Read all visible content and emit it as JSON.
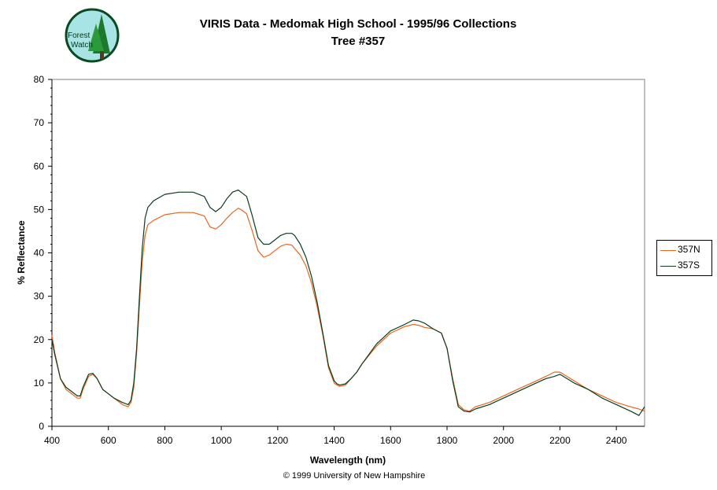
{
  "title_line1": "VIRIS Data - Medomak High School - 1995/96 Collections",
  "title_line2": "Tree #357",
  "logo_text_1": "Forest",
  "logo_text_2": "Watch",
  "copyright": "© 1999 University of New Hampshire",
  "chart_data": {
    "type": "line",
    "xlabel": "Wavelength (nm)",
    "ylabel": "% Reflectance",
    "xlim": [
      400,
      2500
    ],
    "ylim": [
      0,
      80
    ],
    "xticks": [
      400,
      600,
      800,
      1000,
      1200,
      1400,
      1600,
      1800,
      2000,
      2200,
      2400
    ],
    "yticks": [
      0,
      10,
      20,
      30,
      40,
      50,
      60,
      70,
      80
    ],
    "grid": false,
    "legend_position": "right",
    "series": [
      {
        "name": "357N",
        "color": "#e8651a",
        "x": [
          400,
          410,
          430,
          450,
          470,
          490,
          500,
          510,
          530,
          545,
          560,
          580,
          600,
          620,
          650,
          670,
          680,
          690,
          700,
          710,
          720,
          730,
          740,
          760,
          800,
          850,
          900,
          940,
          960,
          980,
          1000,
          1020,
          1040,
          1060,
          1070,
          1090,
          1110,
          1130,
          1150,
          1170,
          1190,
          1210,
          1230,
          1250,
          1260,
          1280,
          1300,
          1320,
          1340,
          1360,
          1380,
          1400,
          1410,
          1420,
          1440,
          1460,
          1480,
          1500,
          1550,
          1600,
          1650,
          1680,
          1700,
          1720,
          1750,
          1780,
          1800,
          1820,
          1840,
          1860,
          1880,
          1900,
          1950,
          2000,
          2050,
          2100,
          2150,
          2180,
          2200,
          2250,
          2300,
          2350,
          2400,
          2450,
          2480,
          2500
        ],
        "y": [
          21,
          17,
          11,
          8.5,
          7.5,
          6.5,
          6.5,
          8.5,
          11.5,
          12,
          11,
          8.5,
          7.5,
          6.5,
          5,
          4.5,
          5.5,
          9,
          17,
          28,
          38,
          44,
          46.5,
          47.5,
          48.8,
          49.3,
          49.3,
          48.5,
          46,
          45.5,
          46.5,
          48,
          49.3,
          50.3,
          50,
          49,
          45,
          40.5,
          39,
          39.5,
          40.5,
          41.5,
          42,
          41.8,
          41,
          39.5,
          37,
          33,
          27.5,
          21,
          13.5,
          10,
          9.5,
          9.2,
          9.5,
          11,
          12.5,
          14.5,
          18.5,
          21.5,
          23,
          23.5,
          23.3,
          22.8,
          22.5,
          21.5,
          18,
          11,
          5,
          3.8,
          3.5,
          4.5,
          5.5,
          7,
          8.5,
          10,
          11.5,
          12.5,
          12.5,
          10.5,
          8.5,
          7,
          5.5,
          4.5,
          4,
          3.5
        ]
      },
      {
        "name": "357S",
        "color": "#0b3d1f",
        "x": [
          400,
          410,
          430,
          450,
          470,
          490,
          500,
          510,
          530,
          545,
          560,
          580,
          600,
          620,
          650,
          670,
          680,
          690,
          700,
          710,
          720,
          730,
          740,
          760,
          800,
          850,
          900,
          940,
          960,
          980,
          1000,
          1020,
          1040,
          1060,
          1070,
          1090,
          1110,
          1130,
          1150,
          1170,
          1190,
          1210,
          1230,
          1250,
          1260,
          1280,
          1300,
          1320,
          1340,
          1360,
          1380,
          1400,
          1410,
          1420,
          1440,
          1460,
          1480,
          1500,
          1550,
          1600,
          1650,
          1680,
          1700,
          1720,
          1750,
          1780,
          1800,
          1820,
          1840,
          1860,
          1880,
          1900,
          1950,
          2000,
          2050,
          2100,
          2150,
          2180,
          2200,
          2250,
          2300,
          2350,
          2400,
          2450,
          2480,
          2500
        ],
        "y": [
          20,
          16.5,
          11,
          9,
          8,
          7,
          7,
          9,
          12,
          12.2,
          11,
          8.5,
          7.5,
          6.5,
          5.5,
          5,
          6,
          10,
          18,
          30,
          41,
          48,
          50.5,
          52,
          53.5,
          54,
          54,
          53,
          50.5,
          49.5,
          50.5,
          52.5,
          54,
          54.5,
          54,
          53,
          48.5,
          43.5,
          42,
          42,
          43,
          44,
          44.5,
          44.5,
          44,
          42,
          39,
          34.5,
          28.5,
          21.5,
          14,
          10.5,
          9.8,
          9.5,
          9.8,
          11,
          12.5,
          14.5,
          19,
          22,
          23.5,
          24.5,
          24.3,
          23.8,
          22.5,
          21.5,
          18,
          10.5,
          4.5,
          3.5,
          3.3,
          4,
          5,
          6.5,
          8,
          9.5,
          11,
          11.5,
          12,
          10,
          8.5,
          6.5,
          5,
          3.5,
          2.5,
          4.5
        ]
      }
    ]
  }
}
